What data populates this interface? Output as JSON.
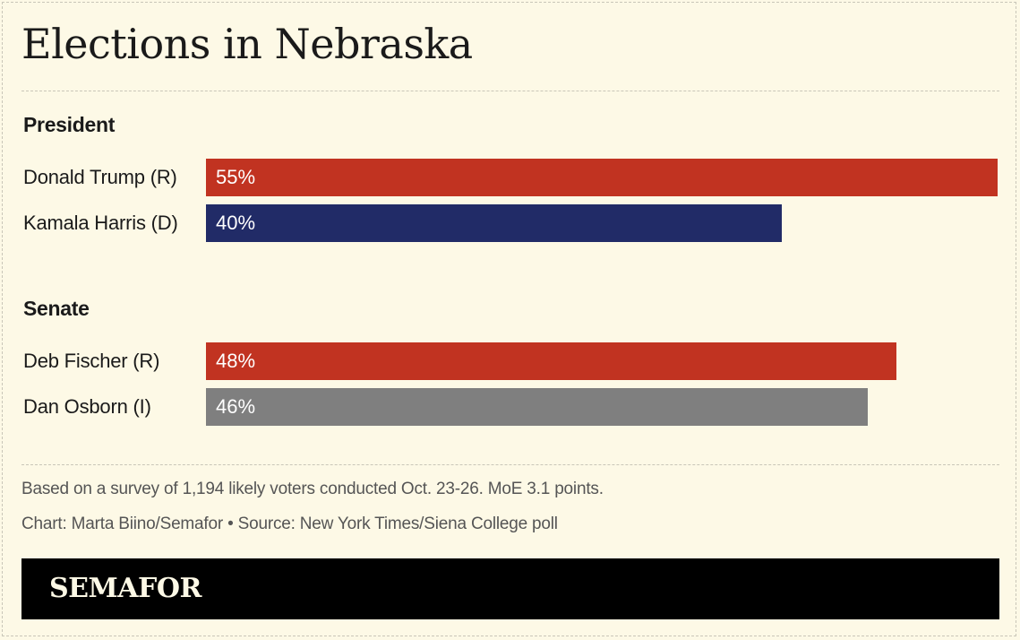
{
  "title": "Elections in Nebraska",
  "colors": {
    "background": "#fdf9e6",
    "republican": "#c13321",
    "democrat": "#212b67",
    "independent": "#7f7f7f",
    "footer": "#000000"
  },
  "chart_data": {
    "type": "bar",
    "orientation": "horizontal",
    "title": "Elections in Nebraska",
    "xlim": [
      0,
      55
    ],
    "groups": [
      {
        "label": "President",
        "bars": [
          {
            "label": "Donald Trump (R)",
            "value": 55,
            "display": "55%",
            "color": "#c13321"
          },
          {
            "label": "Kamala Harris (D)",
            "value": 40,
            "display": "40%",
            "color": "#212b67"
          }
        ]
      },
      {
        "label": "Senate",
        "bars": [
          {
            "label": "Deb Fischer (R)",
            "value": 48,
            "display": "48%",
            "color": "#c13321"
          },
          {
            "label": "Dan Osborn (I)",
            "value": 46,
            "display": "46%",
            "color": "#7f7f7f"
          }
        ]
      }
    ]
  },
  "notes": {
    "survey": "Based on a survey of 1,194 likely voters conducted Oct. 23-26. MoE 3.1 points.",
    "credit": "Chart: Marta Biino/Semafor • Source: New York Times/Siena College poll"
  },
  "footer": {
    "logo_text": "SEMAFOR"
  }
}
